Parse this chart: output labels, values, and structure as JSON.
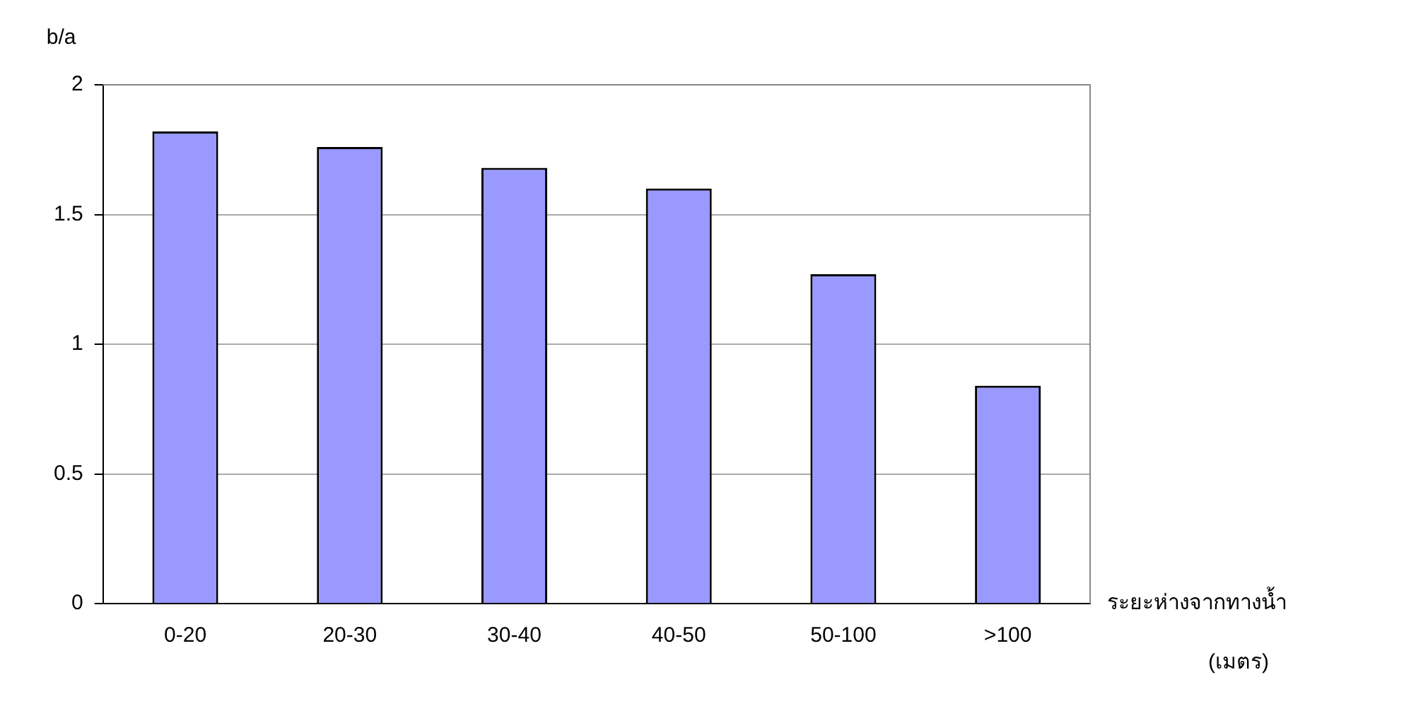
{
  "chart_data": {
    "type": "bar",
    "ylabel": "b/a",
    "xlabel": "ระยะห่างจากทางน้ำ\n(เมตร)",
    "categories": [
      "0-20",
      "20-30",
      "30-40",
      "40-50",
      "50-100",
      ">100"
    ],
    "values": [
      1.82,
      1.76,
      1.68,
      1.6,
      1.27,
      0.84
    ],
    "color": "#9999ff",
    "ylim": [
      0,
      2
    ],
    "yticks": [
      0,
      0.5,
      1,
      1.5,
      2
    ],
    "grid": "y",
    "legend": false
  }
}
